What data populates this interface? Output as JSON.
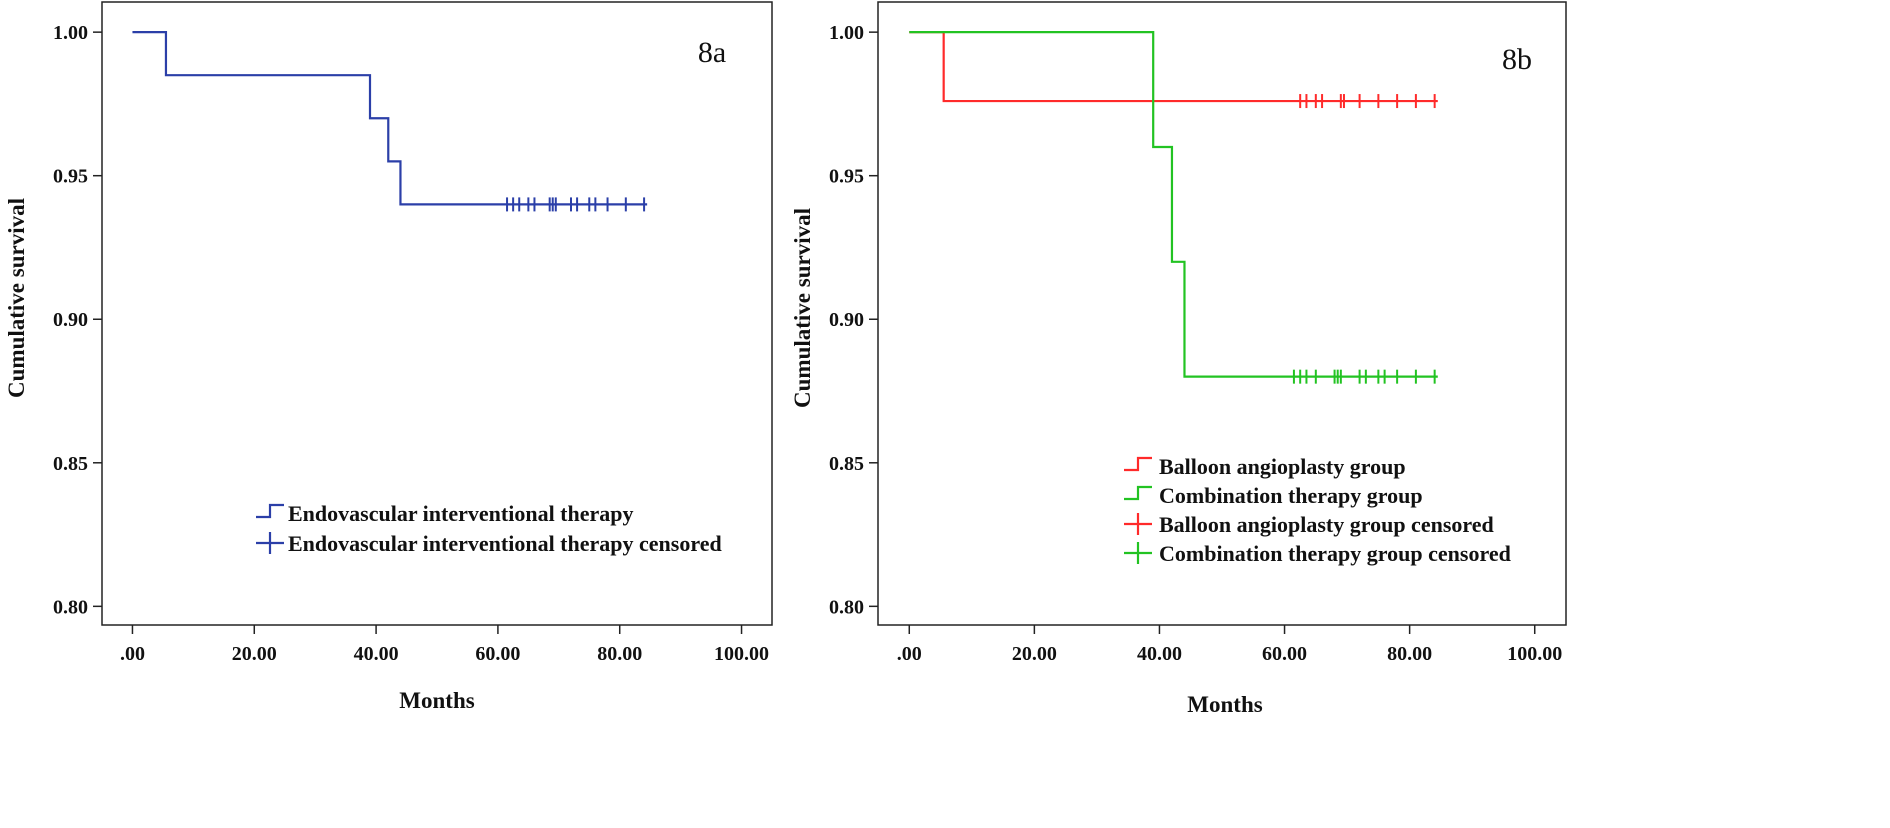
{
  "chart_data": [
    {
      "type": "line",
      "panel_label": "8a",
      "xlabel": "Months",
      "ylabel": "Cumulative survival",
      "xlim": [
        -5,
        105
      ],
      "ylim": [
        0.7935,
        1.0105
      ],
      "xticks": [
        0,
        20,
        40,
        60,
        80,
        100
      ],
      "xtick_labels": [
        ".00",
        "20.00",
        "40.00",
        "60.00",
        "80.00",
        "100.00"
      ],
      "yticks": [
        0.8,
        0.85,
        0.9,
        0.95,
        1.0
      ],
      "ytick_labels": [
        "0.80",
        "0.85",
        "0.90",
        "0.95",
        "1.00"
      ],
      "grid": false,
      "legend_position": "bottom-right",
      "series": [
        {
          "name": "Endovascular interventional therapy",
          "color": "#2b3fa8",
          "step_points": [
            [
              0,
              1.0
            ],
            [
              5.5,
              0.985
            ],
            [
              39,
              0.97
            ],
            [
              42,
              0.955
            ],
            [
              44,
              0.94
            ],
            [
              84.5,
              0.94
            ]
          ],
          "censored_x": [
            61.5,
            62.5,
            63.5,
            65,
            66,
            68.5,
            69,
            69.5,
            72,
            73,
            75,
            76,
            78,
            81,
            84
          ],
          "censored_label": "Endovascular interventional therapy censored"
        }
      ]
    },
    {
      "type": "line",
      "panel_label": "8b",
      "xlabel": "Months",
      "ylabel": "Cumulative survival",
      "xlim": [
        -5,
        105
      ],
      "ylim": [
        0.7935,
        1.0105
      ],
      "xticks": [
        0,
        20,
        40,
        60,
        80,
        100
      ],
      "xtick_labels": [
        ".00",
        "20.00",
        "40.00",
        "60.00",
        "80.00",
        "100.00"
      ],
      "yticks": [
        0.8,
        0.85,
        0.9,
        0.95,
        1.0
      ],
      "ytick_labels": [
        "0.80",
        "0.85",
        "0.90",
        "0.95",
        "1.00"
      ],
      "grid": false,
      "legend_position": "bottom-right",
      "series": [
        {
          "name": "Balloon angioplasty group",
          "color": "#ff2a2a",
          "step_points": [
            [
              0,
              1.0
            ],
            [
              5.5,
              0.976
            ],
            [
              84.5,
              0.976
            ]
          ],
          "censored_x": [
            62.5,
            63.5,
            65,
            66,
            69,
            69.5,
            72,
            75,
            78,
            81,
            84
          ],
          "censored_label": "Balloon angioplasty group censored"
        },
        {
          "name": "Combination therapy group",
          "color": "#22c322",
          "step_points": [
            [
              0,
              1.0
            ],
            [
              39,
              0.96
            ],
            [
              42,
              0.92
            ],
            [
              44,
              0.88
            ],
            [
              84.5,
              0.88
            ]
          ],
          "censored_x": [
            61.5,
            62.5,
            63.5,
            65,
            68,
            68.5,
            69,
            72,
            73,
            75,
            76,
            78,
            81,
            84
          ],
          "censored_label": "Combination therapy group censored"
        }
      ]
    }
  ]
}
